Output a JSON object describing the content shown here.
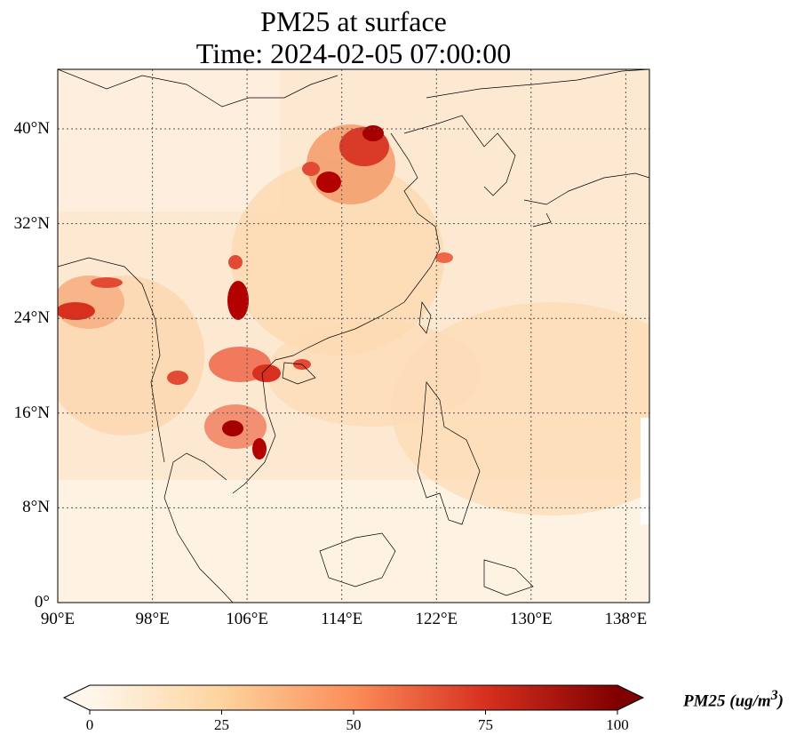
{
  "title_line1": "PM25 at surface",
  "title_line2": "Time: 2024-02-05 07:00:00",
  "map": {
    "lon_range": [
      90,
      140
    ],
    "lat_range": [
      0,
      44
    ],
    "lon_ticks": [
      "90°E",
      "98°E",
      "106°E",
      "114°E",
      "122°E",
      "130°E",
      "138°E"
    ],
    "lat_ticks": [
      "0°",
      "8°N",
      "16°N",
      "24°N",
      "32°N",
      "40°N"
    ],
    "gridlines": "dotted",
    "colormap": "OrRd"
  },
  "colorbar": {
    "label": "PM25 (ug/m",
    "label_sup": "3",
    "label_end": ")",
    "ticks": [
      "0",
      "25",
      "50",
      "75",
      "100"
    ],
    "range": [
      0,
      100
    ],
    "extend": "both"
  }
}
